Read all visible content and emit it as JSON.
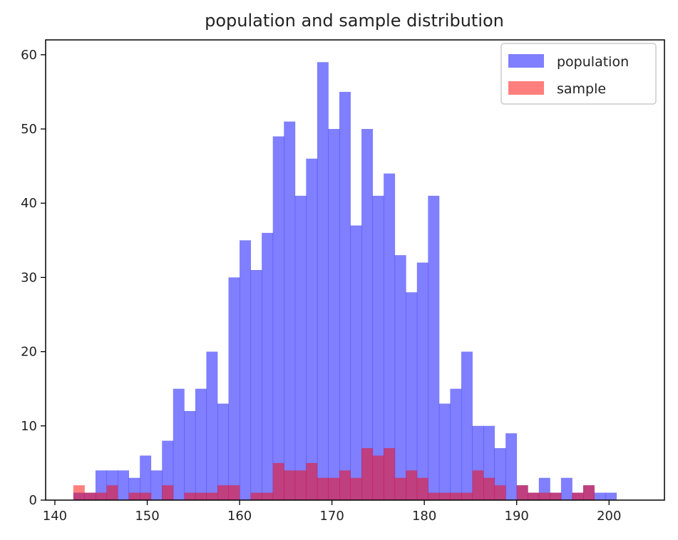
{
  "chart_data": {
    "type": "bar",
    "title": "population and sample distribution",
    "xlabel": "",
    "ylabel": "",
    "xlim": [
      139,
      206
    ],
    "ylim": [
      0,
      62
    ],
    "xticks": [
      "140",
      "150",
      "160",
      "170",
      "180",
      "190",
      "200"
    ],
    "xtick_values": [
      140,
      150,
      160,
      170,
      180,
      190,
      200
    ],
    "yticks": [
      "0",
      "10",
      "20",
      "30",
      "40",
      "50",
      "60"
    ],
    "ytick_values": [
      0,
      10,
      20,
      30,
      40,
      50,
      60
    ],
    "grid": false,
    "legend_position": "top-right",
    "series": [
      {
        "name": "population",
        "color": "#0000ff",
        "opacity": 0.5,
        "bin_start": 142.0,
        "bin_width": 1.2,
        "values": [
          1,
          1,
          4,
          4,
          4,
          3,
          6,
          4,
          8,
          15,
          12,
          15,
          20,
          13,
          30,
          35,
          31,
          36,
          49,
          51,
          41,
          46,
          59,
          50,
          55,
          37,
          50,
          41,
          44,
          33,
          28,
          32,
          41,
          13,
          15,
          20,
          10,
          10,
          7,
          9,
          2,
          1,
          3,
          1,
          3,
          1,
          2,
          1,
          1,
          0
        ]
      },
      {
        "name": "sample",
        "color": "#ff0000",
        "opacity": 0.5,
        "bin_start": 142.0,
        "bin_width": 1.2,
        "values": [
          2,
          1,
          1,
          2,
          0,
          1,
          1,
          0,
          2,
          0,
          1,
          1,
          1,
          2,
          2,
          0,
          1,
          1,
          5,
          4,
          4,
          5,
          3,
          3,
          4,
          3,
          7,
          6,
          7,
          3,
          4,
          3,
          1,
          1,
          1,
          1,
          4,
          3,
          2,
          0,
          2,
          1,
          1,
          1,
          0,
          1,
          2,
          0,
          0,
          0
        ]
      }
    ]
  }
}
